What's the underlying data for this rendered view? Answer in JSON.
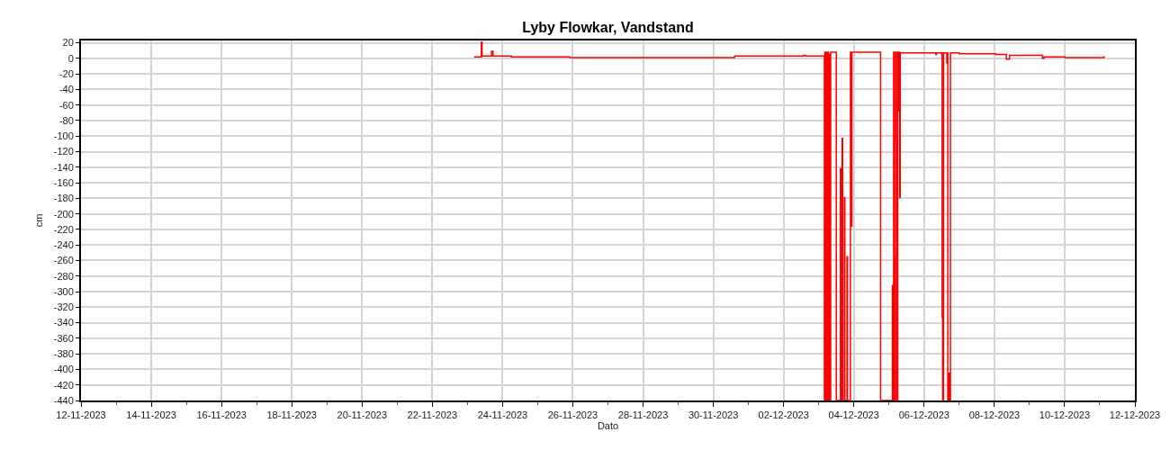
{
  "chart_data": {
    "type": "step",
    "title": "Lyby Flowkar, Vandstand",
    "xlabel": "Dato",
    "ylabel": "cm",
    "color": "#ff0000",
    "grid": true,
    "x": [
      "2023-11-23T04:30",
      "2023-11-23T09:00",
      "2023-11-23T09:30",
      "2023-11-23T10:00",
      "2023-11-23T16:30",
      "2023-11-23T17:30",
      "2023-11-24T06:00",
      "2023-11-25T22:00",
      "2023-11-28T12:00",
      "2023-11-30T00:00",
      "2023-11-30T14:30",
      "2023-12-02T13:30",
      "2023-12-02T15:00",
      "2023-12-03T03:50",
      "2023-12-03T04:10",
      "2023-12-03T04:30",
      "2023-12-03T05:20",
      "2023-12-03T05:40",
      "2023-12-03T06:20",
      "2023-12-03T06:40",
      "2023-12-03T07:20",
      "2023-12-03T07:40",
      "2023-12-03T08:10",
      "2023-12-03T12:00",
      "2023-12-03T14:50",
      "2023-12-03T15:10",
      "2023-12-03T16:00",
      "2023-12-03T16:20",
      "2023-12-03T17:30",
      "2023-12-03T17:50",
      "2023-12-03T19:20",
      "2023-12-03T19:40",
      "2023-12-03T21:40",
      "2023-12-03T22:10",
      "2023-12-03T22:40",
      "2023-12-04T18:15",
      "2023-12-05T02:20",
      "2023-12-05T02:40",
      "2023-12-05T03:10",
      "2023-12-05T03:30",
      "2023-12-05T04:00",
      "2023-12-05T04:30",
      "2023-12-05T05:00",
      "2023-12-05T05:30",
      "2023-12-05T06:00",
      "2023-12-05T06:30",
      "2023-12-05T07:00",
      "2023-12-05T07:20",
      "2023-12-05T07:40",
      "2023-12-06T08:00",
      "2023-12-06T08:30",
      "2023-12-06T12:15",
      "2023-12-06T12:40",
      "2023-12-06T13:15",
      "2023-12-06T15:30",
      "2023-12-06T16:00",
      "2023-12-06T16:10",
      "2023-12-06T17:00",
      "2023-12-06T17:40",
      "2023-12-06T18:00",
      "2023-12-07T00:00",
      "2023-12-08T01:00",
      "2023-12-08T08:10",
      "2023-12-08T10:20",
      "2023-12-09T08:50",
      "2023-12-09T09:50",
      "2023-12-10T00:15",
      "2023-12-11T02:55"
    ],
    "values": [
      2,
      2,
      21,
      3,
      9,
      3,
      2,
      1,
      1,
      1,
      3,
      4,
      3,
      -440,
      8,
      -440,
      8,
      -440,
      8,
      -440,
      5,
      -440,
      8,
      -440,
      -142,
      -440,
      -103,
      -440,
      -179,
      -440,
      -255,
      -440,
      8,
      -216,
      8,
      -440,
      -292,
      -440,
      8,
      -255,
      -440,
      8,
      -104,
      -440,
      8,
      -68,
      8,
      -179,
      7,
      5,
      7,
      -333,
      -440,
      7,
      -6,
      7,
      -440,
      -405,
      -440,
      7,
      6,
      5,
      -1,
      4,
      0,
      2,
      1,
      3
    ],
    "xlim": [
      "2023-11-12",
      "2023-12-12"
    ],
    "xticks": [
      {
        "value": "2023-11-12",
        "label": "12-11-2023"
      },
      {
        "value": "2023-11-13",
        "label": null
      },
      {
        "value": "2023-11-14",
        "label": "14-11-2023"
      },
      {
        "value": "2023-11-15",
        "label": null
      },
      {
        "value": "2023-11-16",
        "label": "16-11-2023"
      },
      {
        "value": "2023-11-17",
        "label": null
      },
      {
        "value": "2023-11-18",
        "label": "18-11-2023"
      },
      {
        "value": "2023-11-19",
        "label": null
      },
      {
        "value": "2023-11-20",
        "label": "20-11-2023"
      },
      {
        "value": "2023-11-21",
        "label": null
      },
      {
        "value": "2023-11-22",
        "label": "22-11-2023"
      },
      {
        "value": "2023-11-23",
        "label": null
      },
      {
        "value": "2023-11-24",
        "label": "24-11-2023"
      },
      {
        "value": "2023-11-25",
        "label": null
      },
      {
        "value": "2023-11-26",
        "label": "26-11-2023"
      },
      {
        "value": "2023-11-27",
        "label": null
      },
      {
        "value": "2023-11-28",
        "label": "28-11-2023"
      },
      {
        "value": "2023-11-29",
        "label": null
      },
      {
        "value": "2023-11-30",
        "label": "30-11-2023"
      },
      {
        "value": "2023-12-01",
        "label": null
      },
      {
        "value": "2023-12-02",
        "label": "02-12-2023"
      },
      {
        "value": "2023-12-03",
        "label": null
      },
      {
        "value": "2023-12-04",
        "label": "04-12-2023"
      },
      {
        "value": "2023-12-05",
        "label": null
      },
      {
        "value": "2023-12-06",
        "label": "06-12-2023"
      },
      {
        "value": "2023-12-07",
        "label": null
      },
      {
        "value": "2023-12-08",
        "label": "08-12-2023"
      },
      {
        "value": "2023-12-09",
        "label": null
      },
      {
        "value": "2023-12-10",
        "label": "10-12-2023"
      },
      {
        "value": "2023-12-11",
        "label": null
      },
      {
        "value": "2023-12-12",
        "label": "12-12-2023"
      }
    ],
    "ylim": [
      -440,
      23
    ],
    "yticks": [
      -440,
      -420,
      -400,
      -380,
      -360,
      -340,
      -320,
      -300,
      -280,
      -260,
      -240,
      -220,
      -200,
      -180,
      -160,
      -140,
      -120,
      -100,
      -80,
      -60,
      -40,
      -20,
      0,
      20
    ]
  }
}
